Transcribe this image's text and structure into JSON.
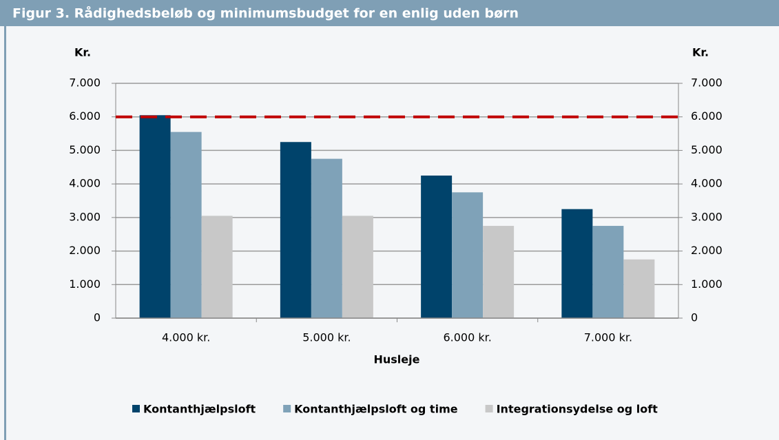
{
  "chart_data": {
    "type": "bar",
    "title": "Figur 3. Rådighedsbeløb og minimumsbudget for en enlig uden børn",
    "y_label": "Kr.",
    "y2_label": "Kr.",
    "x_label": "Husleje",
    "categories": [
      "4.000 kr.",
      "5.000 kr.",
      "6.000 kr.",
      "7.000 kr."
    ],
    "series": [
      {
        "name": "Kontanthjælpsloft",
        "color": "#00436b",
        "values": [
          6050,
          5250,
          4250,
          3250
        ]
      },
      {
        "name": "Kontanthjælpsloft og time",
        "color": "#7fa2b8",
        "values": [
          5550,
          4750,
          3750,
          2750
        ]
      },
      {
        "name": "Integrationsydelse og loft",
        "color": "#c8c8c8",
        "values": [
          3050,
          3050,
          2750,
          1750
        ]
      }
    ],
    "reference_line": {
      "value": 6000,
      "color": "#c00000"
    },
    "ylim": [
      0,
      7000
    ],
    "yticks": [
      0,
      {
        "value": 1000,
        "label": "1.000"
      },
      {
        "value": 2000,
        "label": "2.000"
      },
      {
        "value": 3000,
        "label": "3.000"
      },
      {
        "value": 4000,
        "label": "4.000"
      },
      {
        "value": 5000,
        "label": "5.000"
      },
      {
        "value": 6000,
        "label": "6.000"
      },
      {
        "value": 7000,
        "label": "7.000"
      }
    ],
    "y2lim": [
      0,
      7000
    ],
    "y2ticks": [
      0,
      {
        "value": 1000,
        "label": "1.000"
      },
      {
        "value": 2000,
        "label": "2.000"
      },
      {
        "value": 3000,
        "label": "3.000"
      },
      {
        "value": 4000,
        "label": "4.000"
      },
      {
        "value": 5000,
        "label": "5.000"
      },
      {
        "value": 6000,
        "label": "6.000"
      },
      {
        "value": 7000,
        "label": "7.000"
      }
    ],
    "grid": true,
    "legend": "bottom"
  }
}
